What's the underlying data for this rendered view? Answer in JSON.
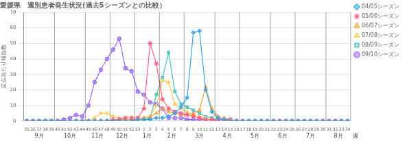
{
  "chart_data": {
    "type": "line",
    "title": "愛媛県　週別患者発生状況(過去5シーズンとの比較）",
    "y_label": "定点当たり報告数",
    "x_label": "週",
    "categories": [
      "35",
      "36",
      "37",
      "38",
      "39",
      "40",
      "41",
      "42",
      "43",
      "44",
      "45",
      "46",
      "47",
      "48",
      "49",
      "50",
      "51",
      "52",
      "53",
      "1",
      "2",
      "3",
      "4",
      "5",
      "6",
      "7",
      "8",
      "9",
      "10",
      "11",
      "12",
      "13",
      "14",
      "15",
      "16",
      "17",
      "18",
      "19",
      "20",
      "21",
      "22",
      "23",
      "24",
      "25",
      "26",
      "27",
      "28",
      "29",
      "30",
      "31",
      "32",
      "33",
      "34"
    ],
    "annotations": [
      {
        "text": "9月",
        "x": "35"
      },
      {
        "text": "10月",
        "x": "40"
      },
      {
        "text": "11月",
        "x": "45"
      },
      {
        "text": "12月",
        "x": "49"
      },
      {
        "text": "1月",
        "x": "53"
      },
      {
        "text": "2月",
        "x": "4"
      },
      {
        "text": "3月",
        "x": "8"
      },
      {
        "text": "4月",
        "x": "13"
      },
      {
        "text": "5月",
        "x": "17"
      },
      {
        "text": "6月",
        "x": "22"
      },
      {
        "text": "7月",
        "x": "26"
      },
      {
        "text": "8月",
        "x": "31"
      }
    ],
    "series": [
      {
        "name": "04/05シーズン",
        "marker": "diamond",
        "values": [
          0,
          0,
          0,
          0,
          0,
          0,
          0,
          0,
          0,
          0,
          0,
          0,
          0,
          0,
          0,
          0,
          0,
          0,
          1,
          1,
          1,
          2,
          2,
          3,
          5,
          9,
          15,
          57,
          58,
          20,
          6,
          2,
          1,
          0,
          0,
          0,
          0,
          0,
          0,
          0,
          0,
          0,
          0,
          0,
          0,
          0,
          0,
          0,
          0,
          0,
          0,
          0,
          0
        ]
      },
      {
        "name": "05/06シーズン",
        "marker": "star",
        "values": [
          0,
          0,
          0,
          0,
          0,
          0,
          0,
          0,
          0,
          0,
          0,
          0,
          0,
          0,
          1,
          1,
          2,
          2,
          2,
          8,
          50,
          37,
          14,
          8,
          6,
          5,
          4,
          3,
          2,
          1,
          1,
          0,
          0,
          0,
          0,
          0,
          0,
          0,
          0,
          0,
          0,
          0,
          0,
          0,
          0,
          0,
          0,
          0,
          0,
          0,
          0,
          0,
          0
        ]
      },
      {
        "name": "06/07シーズン",
        "marker": "triangle",
        "values": [
          0,
          0,
          0,
          0,
          0,
          0,
          0,
          0,
          0,
          0,
          0,
          0,
          0,
          0,
          0,
          1,
          1,
          1,
          1,
          2,
          3,
          5,
          8,
          6,
          5,
          4,
          4,
          5,
          7,
          22,
          8,
          3,
          2,
          1,
          0,
          0,
          0,
          0,
          0,
          0,
          0,
          0,
          0,
          0,
          0,
          0,
          0,
          0,
          0,
          0,
          0,
          0,
          0
        ]
      },
      {
        "name": "07/08シーズン",
        "marker": "triangle",
        "values": [
          0,
          0,
          0,
          0,
          0,
          0,
          0,
          0,
          0,
          0,
          0,
          2,
          5,
          5,
          3,
          2,
          2,
          2,
          2,
          2,
          3,
          10,
          26,
          25,
          11,
          8,
          6,
          4,
          3,
          2,
          1,
          0,
          0,
          0,
          0,
          0,
          0,
          0,
          0,
          0,
          0,
          0,
          0,
          0,
          0,
          0,
          0,
          0,
          0,
          0,
          0,
          0,
          0
        ]
      },
      {
        "name": "08/09シーズン",
        "marker": "square",
        "values": [
          0,
          0,
          0,
          0,
          0,
          0,
          0,
          0,
          0,
          0,
          0,
          0,
          0,
          0,
          0,
          1,
          1,
          1,
          1,
          1,
          2,
          17,
          28,
          44,
          19,
          11,
          9,
          7,
          5,
          3,
          2,
          0,
          0,
          0,
          0,
          0,
          0,
          0,
          0,
          0,
          0,
          0,
          0,
          0,
          0,
          0,
          0,
          0,
          0,
          0,
          0,
          0,
          0
        ]
      },
      {
        "name": "09/10シーズン",
        "marker": "circle",
        "values": [
          0,
          0,
          0,
          0,
          0,
          0,
          1,
          2,
          4,
          3,
          10,
          25,
          33,
          40,
          46,
          53,
          34,
          32,
          19,
          17,
          12,
          11,
          8,
          2,
          2,
          2,
          1,
          1,
          1,
          1,
          1,
          1,
          1,
          1,
          0,
          0,
          0,
          0,
          0,
          0,
          0,
          0,
          0,
          0,
          0,
          0,
          0,
          0,
          0,
          0,
          0,
          0,
          0
        ]
      }
    ],
    "ylim": [
      0,
      70
    ],
    "yticks": [
      0,
      10,
      20,
      30,
      40,
      50,
      60,
      70
    ],
    "grid": true,
    "legend": "right"
  }
}
